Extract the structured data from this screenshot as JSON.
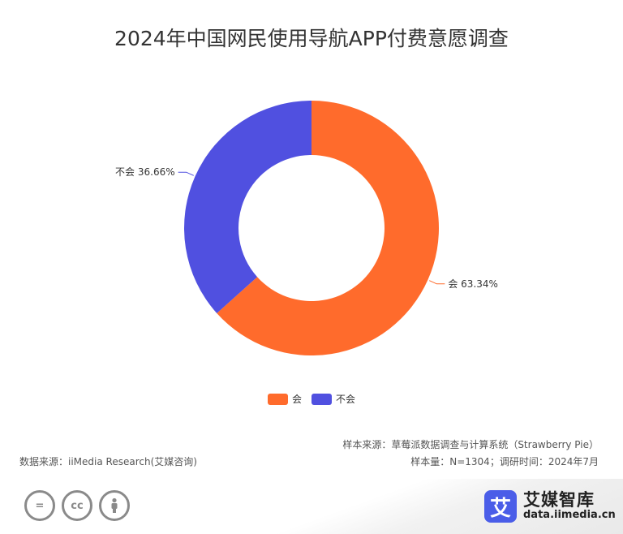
{
  "title": "2024年中国网民使用导航APP付费意愿调查",
  "chart_data": {
    "type": "pie",
    "variant": "donut",
    "title": "2024年中国网民使用导航APP付费意愿调查",
    "categories": [
      "会",
      "不会"
    ],
    "values": [
      63.34,
      36.66
    ],
    "labels": [
      "会 63.34%",
      "不会 36.66%"
    ],
    "colors": [
      "#ff6b2c",
      "#5050e0"
    ],
    "legend_position": "bottom"
  },
  "legend": [
    {
      "label": "会",
      "color": "#ff6b2c"
    },
    {
      "label": "不会",
      "color": "#5050e0"
    }
  ],
  "footer": {
    "sample_source": "样本来源：草莓派数据调查与计算系统（Strawberry Pie）",
    "sample_size": "样本量：N=1304；调研时间：2024年7月",
    "data_source": "数据来源：iiMedia Research(艾媒咨询)",
    "cc_icons": [
      "equals-icon",
      "cc-icon",
      "person-icon"
    ],
    "cc_glyphs": [
      "=",
      "cc",
      ""
    ],
    "brand_logo_char": "艾",
    "brand_name": "艾媒智库",
    "brand_url": "data.iimedia.cn"
  }
}
